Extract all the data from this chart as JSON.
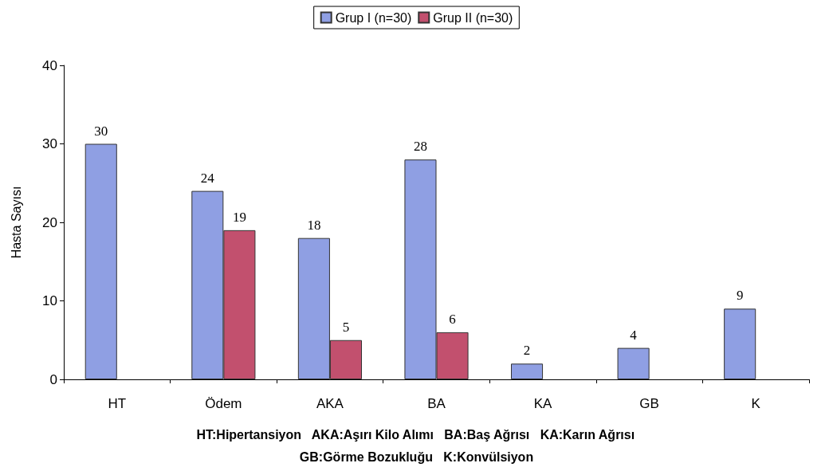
{
  "chart_data": {
    "type": "bar",
    "ylabel": "Hasta Sayısı",
    "categories": [
      "HT",
      "Ödem",
      "AKA",
      "BA",
      "KA",
      "GB",
      "K"
    ],
    "series": [
      {
        "name": "Grup I (n=30)",
        "color": "#8f9fe3",
        "values": [
          30,
          24,
          18,
          28,
          2,
          4,
          9
        ]
      },
      {
        "name": "Grup II (n=30)",
        "color": "#c2506e",
        "values": [
          null,
          19,
          5,
          6,
          null,
          null,
          null
        ]
      }
    ],
    "ylim": [
      0,
      40
    ],
    "yticks": [
      0,
      10,
      20,
      30,
      40
    ],
    "grid": false,
    "legend": "top",
    "data_labels": true,
    "annotations": [
      "HT:Hipertansiyon   AKA:Aşırı Kilo Alımı   BA:Baş Ağrısı   KA:Karın Ağrısı",
      "GB:Görme Bozukluğu   K:Konvülsiyon"
    ]
  }
}
